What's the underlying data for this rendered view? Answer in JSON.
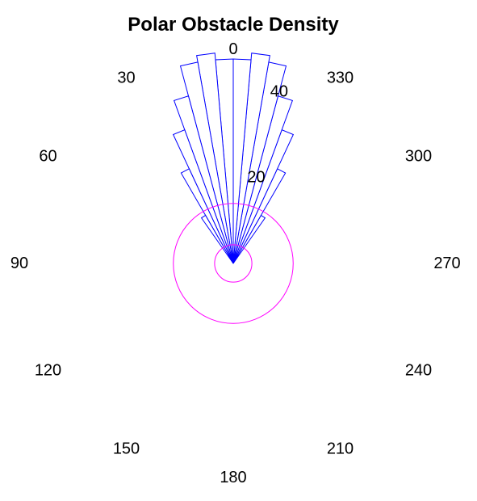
{
  "chart_data": {
    "type": "polar-histogram",
    "title": "Polar Obstacle Density",
    "angular_ticks": [
      "0",
      "30",
      "60",
      "90",
      "120",
      "150",
      "180",
      "210",
      "240",
      "270",
      "300",
      "330"
    ],
    "angular_tick_values": [
      0,
      30,
      60,
      90,
      120,
      150,
      180,
      210,
      240,
      270,
      300,
      330
    ],
    "angle_direction": "counterclockwise",
    "zero_location": "top",
    "radial_ticks": [
      "20",
      "40"
    ],
    "radial_tick_values": [
      20,
      40
    ],
    "rlim": [
      0,
      40
    ],
    "radial_label_angle": 345,
    "bin_width_deg": 5,
    "bins": [
      {
        "center": -32.5,
        "value": 12.5
      },
      {
        "center": -27.5,
        "value": 23.5
      },
      {
        "center": -22.5,
        "value": 32
      },
      {
        "center": -17.5,
        "value": 39
      },
      {
        "center": -12.5,
        "value": 46
      },
      {
        "center": -7.5,
        "value": 47.5
      },
      {
        "center": -2.5,
        "value": 46
      },
      {
        "center": 2.5,
        "value": 46
      },
      {
        "center": 7.5,
        "value": 47.5
      },
      {
        "center": 12.5,
        "value": 46
      },
      {
        "center": 17.5,
        "value": 39
      },
      {
        "center": 22.5,
        "value": 32
      },
      {
        "center": 27.5,
        "value": 23.5
      },
      {
        "center": 32.5,
        "value": 12.5
      }
    ],
    "circles": [
      {
        "radius": 4.2,
        "color": "#ff00ff"
      },
      {
        "radius": 13.5,
        "color": "#ff00ff"
      }
    ],
    "bar_edge_color": "#0000ff",
    "bar_face_color": "#ffffff"
  }
}
